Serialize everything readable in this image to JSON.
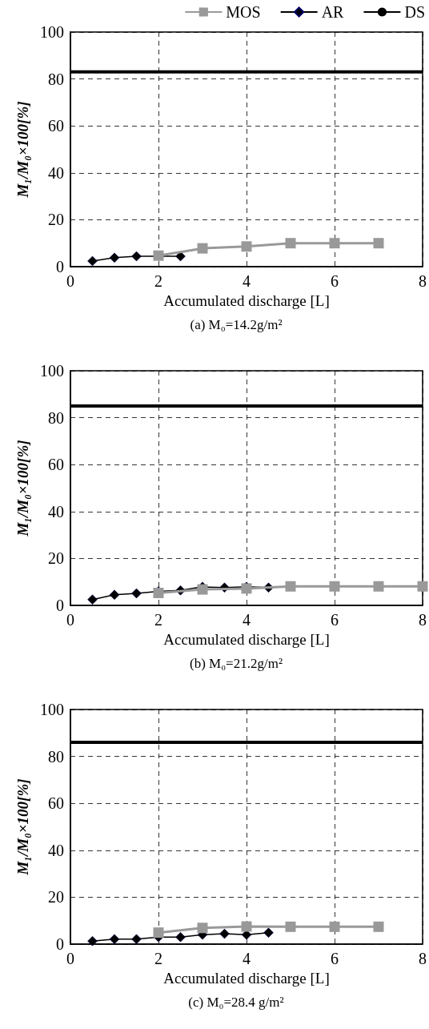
{
  "chart_data": [
    {
      "type": "line",
      "title": "(a) M₀=14.2g/m²",
      "xlabel": "Accumulated discharge [L]",
      "ylabel": "M₁/M₀×100[%]",
      "xlim": [
        0,
        8
      ],
      "xticks": [
        0,
        2,
        4,
        6,
        8
      ],
      "ylim": [
        0,
        100
      ],
      "yticks": [
        0,
        20,
        40,
        60,
        80,
        100
      ],
      "grid": true,
      "legend": "top right",
      "series": [
        {
          "name": "MOS",
          "color": "#999999",
          "marker": "square",
          "x": [
            2,
            3,
            4,
            5,
            6,
            7
          ],
          "values": [
            4.7,
            7.8,
            8.6,
            10,
            10,
            10
          ]
        },
        {
          "name": "AR",
          "color": "#000000",
          "marker": "diamond",
          "x": [
            0.5,
            1,
            1.5,
            2.5
          ],
          "values": [
            2.4,
            3.8,
            4.4,
            4.4
          ]
        },
        {
          "name": "DS",
          "color": "#000000",
          "marker": "none",
          "x": [
            0,
            8
          ],
          "values": [
            83,
            83
          ]
        }
      ]
    },
    {
      "type": "line",
      "title": "(b) M₀=21.2g/m²",
      "xlabel": "Accumulated discharge [L]",
      "ylabel": "M₁/M₀×100[%]",
      "xlim": [
        0,
        8
      ],
      "xticks": [
        0,
        2,
        4,
        6,
        8
      ],
      "ylim": [
        0,
        100
      ],
      "yticks": [
        0,
        20,
        40,
        60,
        80,
        100
      ],
      "grid": true,
      "series": [
        {
          "color": "#999999",
          "marker": "square",
          "x": [
            2,
            3,
            4,
            5,
            6,
            7,
            8
          ],
          "values": [
            5.3,
            6.8,
            7.2,
            8.1,
            8.1,
            8.1,
            8.1
          ]
        },
        {
          "color": "#000000",
          "marker": "diamond",
          "x": [
            0.5,
            1,
            1.5,
            2,
            2.5,
            3,
            3.5,
            4,
            4.5
          ],
          "values": [
            2.5,
            4.5,
            5.1,
            6,
            6.4,
            7.9,
            7.6,
            7.9,
            7.6
          ]
        },
        {
          "color": "#000000",
          "marker": "none",
          "x": [
            0,
            8
          ],
          "values": [
            85,
            85
          ]
        }
      ]
    },
    {
      "type": "line",
      "title": "(c) M₀=28.4 g/m²",
      "xlabel": "Accumulated discharge [L]",
      "ylabel": "M₁/M₀×100[%]",
      "xlim": [
        0,
        8
      ],
      "xticks": [
        0,
        2,
        4,
        6,
        8
      ],
      "ylim": [
        0,
        100
      ],
      "yticks": [
        0,
        20,
        40,
        60,
        80,
        100
      ],
      "grid": true,
      "series": [
        {
          "color": "#999999",
          "marker": "square",
          "x": [
            2,
            3,
            4,
            5,
            6,
            7
          ],
          "values": [
            4.9,
            6.9,
            7.5,
            7.4,
            7.4,
            7.4
          ]
        },
        {
          "color": "#000000",
          "marker": "diamond",
          "x": [
            0.5,
            1,
            1.5,
            2,
            2.5,
            3,
            3.5,
            4,
            4.5
          ],
          "values": [
            1.3,
            2.1,
            2.1,
            3,
            3,
            4,
            4.4,
            4,
            4.9
          ]
        },
        {
          "color": "#000000",
          "marker": "none",
          "x": [
            0,
            8
          ],
          "values": [
            86,
            86
          ]
        }
      ]
    }
  ]
}
